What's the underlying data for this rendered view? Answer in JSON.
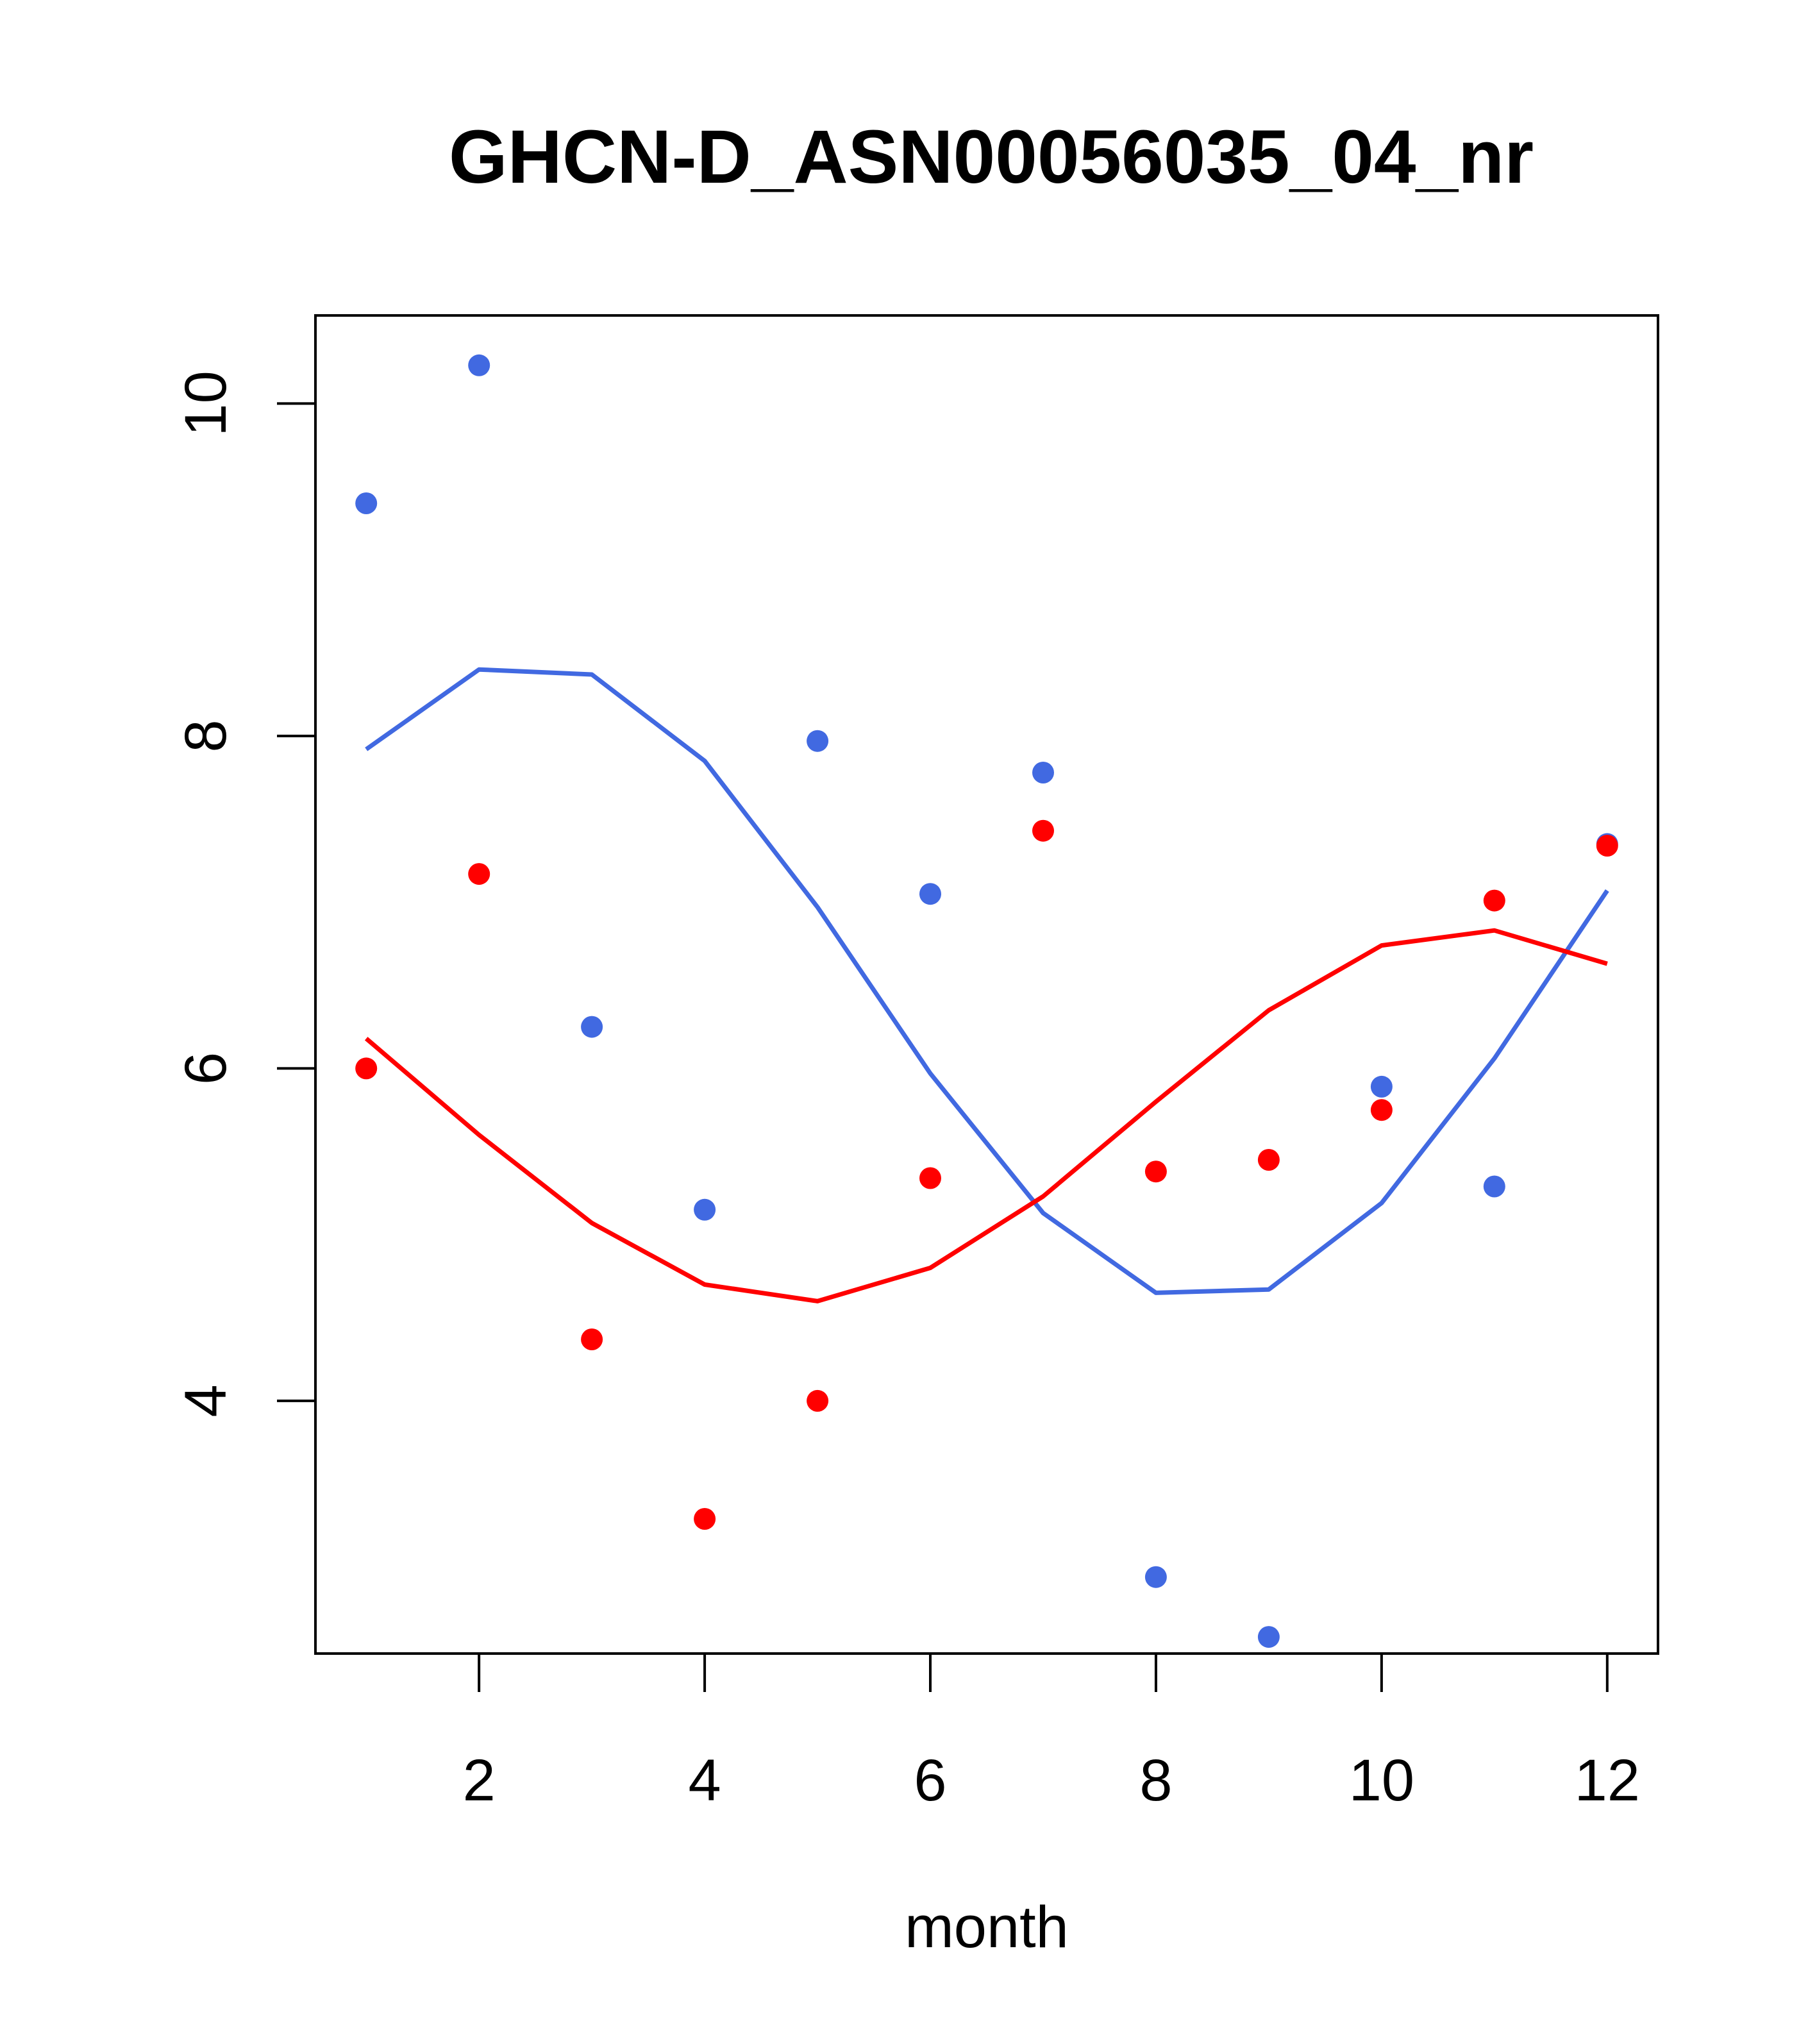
{
  "chart_data": {
    "type": "scatter",
    "title": "GHCN-D_ASN00056035_04_nr",
    "xlabel": "month",
    "ylabel": "",
    "xlim": [
      0.55,
      12.45
    ],
    "ylim": [
      2.48,
      10.53
    ],
    "xticks": [
      2,
      4,
      6,
      8,
      10,
      12
    ],
    "xtick_labels": [
      "2",
      "4",
      "6",
      "8",
      "10",
      "12"
    ],
    "yticks": [
      4,
      6,
      8,
      10
    ],
    "ytick_labels": [
      "4",
      "6",
      "8",
      "10"
    ],
    "grid": false,
    "legend": "none",
    "series": [
      {
        "color": "#4169E1",
        "points": {
          "x": [
            1,
            2,
            3,
            4,
            5,
            6,
            7,
            8,
            9,
            10,
            11,
            12
          ],
          "y": [
            9.4,
            10.23,
            6.25,
            5.15,
            7.97,
            7.05,
            7.78,
            2.94,
            2.58,
            5.89,
            5.29,
            7.35
          ]
        },
        "line": {
          "x": [
            1,
            2,
            3,
            4,
            5,
            6,
            7,
            8,
            9,
            10,
            11,
            12
          ],
          "y": [
            7.92,
            8.4,
            8.37,
            7.85,
            6.97,
            5.97,
            5.13,
            4.65,
            4.67,
            5.19,
            6.06,
            7.07
          ]
        }
      },
      {
        "color": "#FF0000",
        "points": {
          "x": [
            1,
            2,
            3,
            4,
            5,
            6,
            7,
            8,
            9,
            10,
            11,
            12
          ],
          "y": [
            6.0,
            7.17,
            4.37,
            3.29,
            4.0,
            5.34,
            7.43,
            5.38,
            5.45,
            5.75,
            7.01,
            7.34
          ]
        },
        "line": {
          "x": [
            1,
            2,
            3,
            4,
            5,
            6,
            7,
            8,
            9,
            10,
            11,
            12
          ],
          "y": [
            6.18,
            5.6,
            5.07,
            4.7,
            4.6,
            4.8,
            5.23,
            5.8,
            6.35,
            6.74,
            6.83,
            6.63
          ]
        }
      }
    ]
  }
}
